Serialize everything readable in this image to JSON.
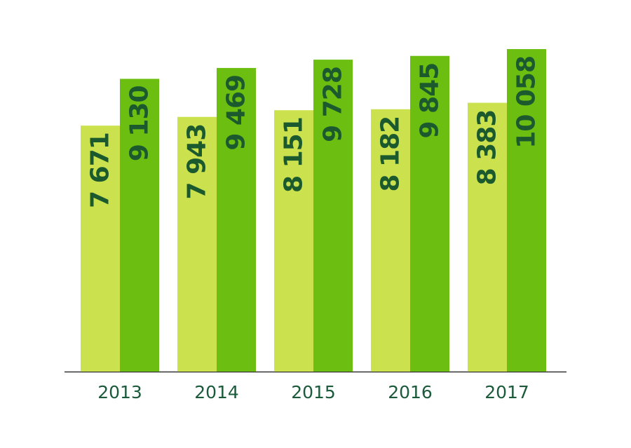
{
  "chart_data": {
    "type": "bar",
    "categories": [
      "2013",
      "2014",
      "2015",
      "2016",
      "2017"
    ],
    "series": [
      {
        "color": "#cce14e",
        "values": [
          7671,
          7943,
          8151,
          8182,
          8383
        ],
        "value_labels": [
          "7 671",
          "7 943",
          "8 151",
          "8 182",
          "8 383"
        ]
      },
      {
        "color": "#6cbf10",
        "values": [
          9130,
          9469,
          9728,
          9845,
          10058
        ],
        "value_labels": [
          "9 130",
          "9 469",
          "9 728",
          "9 845",
          "10 058"
        ]
      }
    ]
  }
}
